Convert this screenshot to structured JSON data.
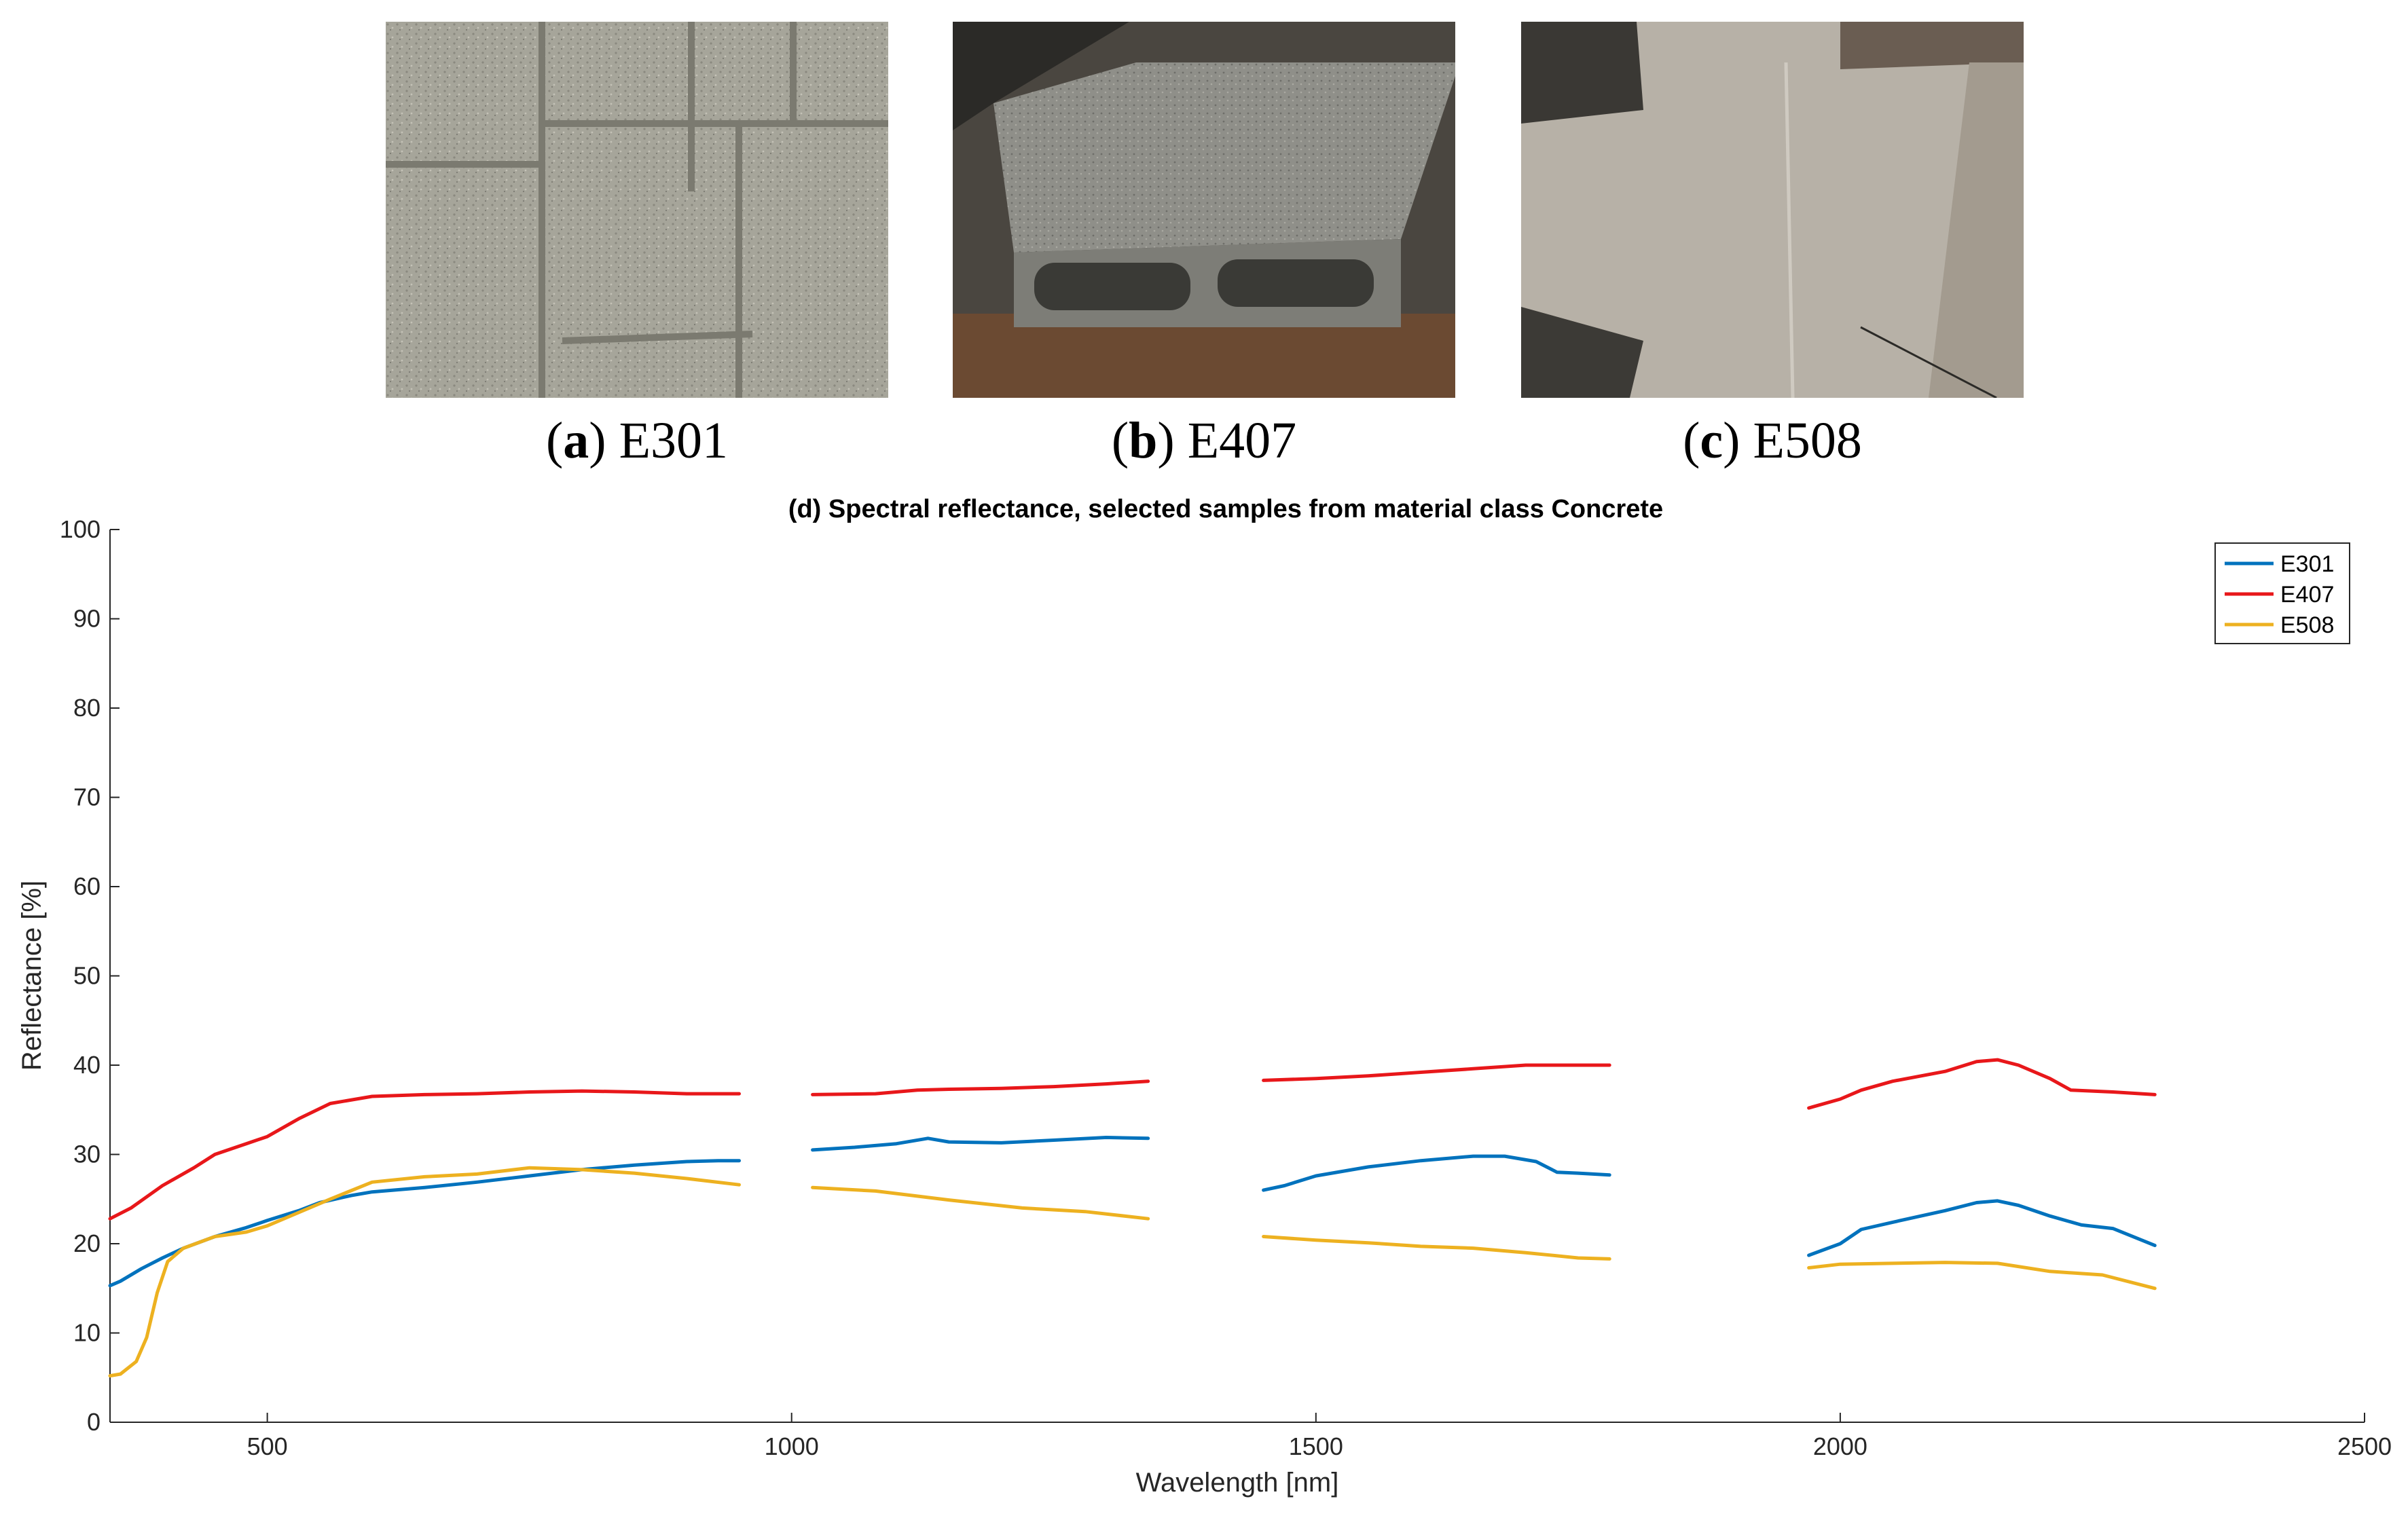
{
  "panels": [
    {
      "letter": "a",
      "name": "E301",
      "image": "concrete paving slabs photo"
    },
    {
      "letter": "b",
      "name": "E407",
      "image": "concrete block photo"
    },
    {
      "letter": "c",
      "name": "E508",
      "image": "concrete wall surface photo"
    }
  ],
  "colors": {
    "E301": "#0072BD",
    "E407": "#E8171A",
    "E508": "#EDB120"
  },
  "chart_data": {
    "type": "line",
    "title": "(d) Spectral reflectance, selected samples from material class Concrete",
    "xlabel": "Wavelength [nm]",
    "ylabel": "Reflectance [%]",
    "xlim": [
      350,
      2500
    ],
    "ylim": [
      0,
      100
    ],
    "xticks": [
      500,
      1000,
      1500,
      2000,
      2500
    ],
    "yticks": [
      0,
      10,
      20,
      30,
      40,
      50,
      60,
      70,
      80,
      90,
      100
    ],
    "grid": false,
    "legend_position": "top-right",
    "series": [
      {
        "name": "E301",
        "color": "#0072BD",
        "segments": [
          [
            [
              350,
              15.3
            ],
            [
              360,
              15.8
            ],
            [
              380,
              17.2
            ],
            [
              400,
              18.4
            ],
            [
              420,
              19.5
            ],
            [
              450,
              20.8
            ],
            [
              480,
              21.8
            ],
            [
              500,
              22.6
            ],
            [
              530,
              23.7
            ],
            [
              550,
              24.6
            ],
            [
              580,
              25.4
            ],
            [
              600,
              25.8
            ],
            [
              650,
              26.3
            ],
            [
              700,
              26.9
            ],
            [
              750,
              27.6
            ],
            [
              800,
              28.3
            ],
            [
              850,
              28.8
            ],
            [
              900,
              29.2
            ],
            [
              930,
              29.3
            ],
            [
              950,
              29.3
            ]
          ],
          [
            [
              1020,
              30.5
            ],
            [
              1060,
              30.8
            ],
            [
              1100,
              31.2
            ],
            [
              1130,
              31.8
            ],
            [
              1150,
              31.4
            ],
            [
              1200,
              31.3
            ],
            [
              1250,
              31.6
            ],
            [
              1300,
              31.9
            ],
            [
              1340,
              31.8
            ]
          ],
          [
            [
              1450,
              26.0
            ],
            [
              1470,
              26.5
            ],
            [
              1500,
              27.6
            ],
            [
              1550,
              28.6
            ],
            [
              1600,
              29.3
            ],
            [
              1650,
              29.8
            ],
            [
              1680,
              29.8
            ],
            [
              1710,
              29.2
            ],
            [
              1730,
              28.0
            ],
            [
              1750,
              27.9
            ],
            [
              1780,
              27.7
            ]
          ],
          [
            [
              1970,
              18.7
            ],
            [
              2000,
              20.0
            ],
            [
              2020,
              21.6
            ],
            [
              2050,
              22.4
            ],
            [
              2100,
              23.7
            ],
            [
              2130,
              24.6
            ],
            [
              2150,
              24.8
            ],
            [
              2170,
              24.3
            ],
            [
              2200,
              23.1
            ],
            [
              2230,
              22.1
            ],
            [
              2260,
              21.7
            ],
            [
              2300,
              19.8
            ]
          ]
        ]
      },
      {
        "name": "E407",
        "color": "#E8171A",
        "segments": [
          [
            [
              350,
              22.8
            ],
            [
              370,
              24.0
            ],
            [
              400,
              26.5
            ],
            [
              430,
              28.5
            ],
            [
              450,
              30.0
            ],
            [
              480,
              31.2
            ],
            [
              500,
              32.0
            ],
            [
              530,
              34.0
            ],
            [
              560,
              35.7
            ],
            [
              600,
              36.5
            ],
            [
              650,
              36.7
            ],
            [
              700,
              36.8
            ],
            [
              750,
              37.0
            ],
            [
              800,
              37.1
            ],
            [
              850,
              37.0
            ],
            [
              900,
              36.8
            ],
            [
              950,
              36.8
            ]
          ],
          [
            [
              1020,
              36.7
            ],
            [
              1080,
              36.8
            ],
            [
              1120,
              37.2
            ],
            [
              1150,
              37.3
            ],
            [
              1200,
              37.4
            ],
            [
              1250,
              37.6
            ],
            [
              1300,
              37.9
            ],
            [
              1340,
              38.2
            ]
          ],
          [
            [
              1450,
              38.3
            ],
            [
              1500,
              38.5
            ],
            [
              1550,
              38.8
            ],
            [
              1600,
              39.2
            ],
            [
              1650,
              39.6
            ],
            [
              1700,
              40.0
            ],
            [
              1780,
              40.0
            ]
          ],
          [
            [
              1970,
              35.2
            ],
            [
              2000,
              36.2
            ],
            [
              2020,
              37.2
            ],
            [
              2050,
              38.2
            ],
            [
              2100,
              39.3
            ],
            [
              2130,
              40.4
            ],
            [
              2150,
              40.6
            ],
            [
              2170,
              40.0
            ],
            [
              2200,
              38.5
            ],
            [
              2220,
              37.2
            ],
            [
              2260,
              37.0
            ],
            [
              2300,
              36.7
            ]
          ]
        ]
      },
      {
        "name": "E508",
        "color": "#EDB120",
        "segments": [
          [
            [
              350,
              5.2
            ],
            [
              360,
              5.4
            ],
            [
              375,
              6.8
            ],
            [
              385,
              9.5
            ],
            [
              395,
              14.5
            ],
            [
              405,
              18.0
            ],
            [
              420,
              19.5
            ],
            [
              450,
              20.8
            ],
            [
              480,
              21.3
            ],
            [
              500,
              22.0
            ],
            [
              530,
              23.5
            ],
            [
              560,
              25.0
            ],
            [
              600,
              26.9
            ],
            [
              650,
              27.5
            ],
            [
              700,
              27.8
            ],
            [
              750,
              28.5
            ],
            [
              800,
              28.3
            ],
            [
              850,
              27.9
            ],
            [
              900,
              27.3
            ],
            [
              950,
              26.6
            ]
          ],
          [
            [
              1020,
              26.3
            ],
            [
              1080,
              25.9
            ],
            [
              1150,
              24.9
            ],
            [
              1220,
              24.0
            ],
            [
              1280,
              23.6
            ],
            [
              1340,
              22.8
            ]
          ],
          [
            [
              1450,
              20.8
            ],
            [
              1500,
              20.4
            ],
            [
              1550,
              20.1
            ],
            [
              1600,
              19.7
            ],
            [
              1650,
              19.5
            ],
            [
              1700,
              19.0
            ],
            [
              1750,
              18.4
            ],
            [
              1780,
              18.3
            ]
          ],
          [
            [
              1970,
              17.3
            ],
            [
              2000,
              17.7
            ],
            [
              2050,
              17.8
            ],
            [
              2100,
              17.9
            ],
            [
              2150,
              17.8
            ],
            [
              2200,
              16.9
            ],
            [
              2250,
              16.5
            ],
            [
              2300,
              15.0
            ]
          ]
        ]
      }
    ]
  }
}
